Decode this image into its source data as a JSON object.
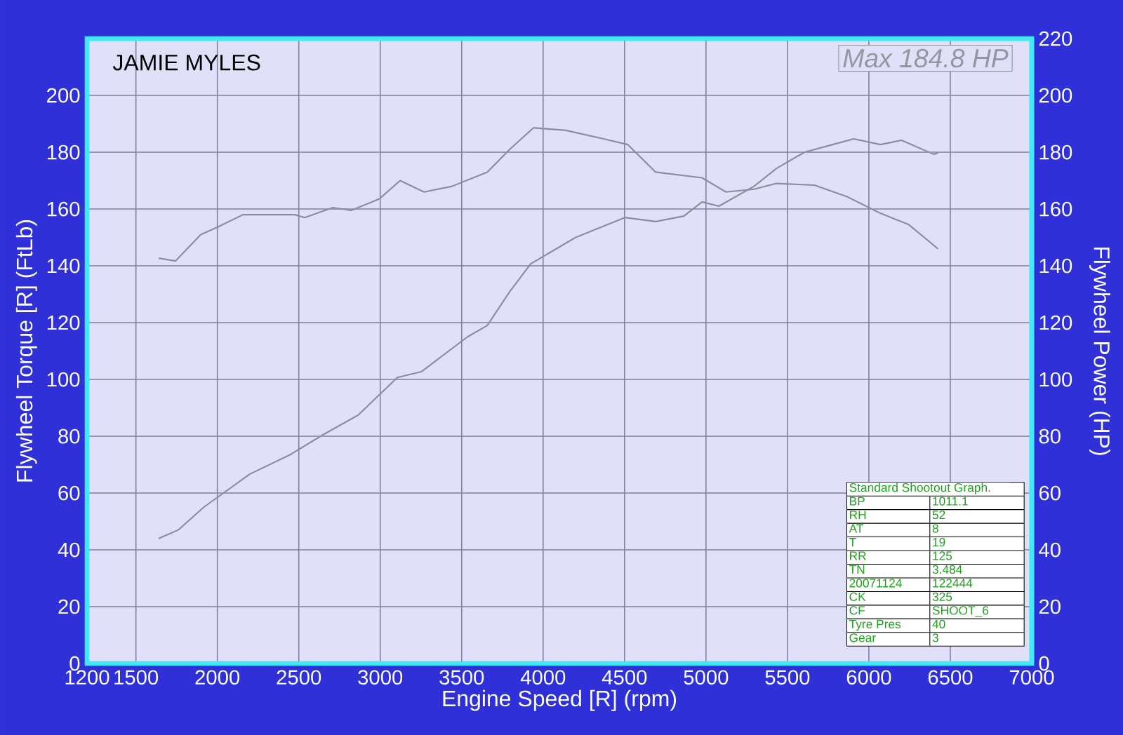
{
  "chart_data": {
    "type": "line",
    "title": "JAMIE MYLES",
    "xlabel": "Engine Speed [R] (rpm)",
    "ylabel": "Flywheel Torque [R] (FtLb)",
    "y2label": "Flywheel Power (HP)",
    "xlim": [
      1200,
      7000
    ],
    "xticks": [
      1200,
      1500,
      2000,
      2500,
      3000,
      3500,
      4000,
      4500,
      5000,
      5500,
      6000,
      6500,
      7000
    ],
    "ylim": [
      0,
      220
    ],
    "yticks": [
      0,
      20,
      40,
      60,
      80,
      100,
      120,
      140,
      160,
      180,
      200
    ],
    "y2lim": [
      0,
      220
    ],
    "y2ticks": [
      0,
      20,
      40,
      60,
      80,
      100,
      120,
      140,
      160,
      180,
      200,
      220
    ],
    "grid": true,
    "series": [
      {
        "color": "#8c8c9c",
        "x": [
          1640,
          1743,
          1898,
          2000,
          2157,
          2476,
          2536,
          2709,
          2821,
          2993,
          3122,
          3269,
          3441,
          3657,
          3795,
          3941,
          4140,
          4372,
          4519,
          4691,
          4976,
          5122,
          5295,
          5433,
          5666,
          5864,
          6071,
          6243,
          6424
        ],
        "values": [
          142.7,
          141.7,
          151,
          153.6,
          158,
          158,
          157,
          160.5,
          159.5,
          163.5,
          170,
          166,
          168,
          173,
          181,
          188.6,
          187.7,
          184.7,
          182.7,
          173,
          171,
          166,
          167,
          169,
          168.4,
          164.4,
          158.5,
          154.6,
          146
        ]
      },
      {
        "color": "#8c8c9c",
        "axis": "y2",
        "x": [
          1640,
          1760,
          1916,
          2200,
          2450,
          2648,
          2864,
          3105,
          3252,
          3536,
          3657,
          3795,
          3924,
          4200,
          4502,
          4691,
          4864,
          4976,
          5079,
          5295,
          5433,
          5605,
          5778,
          5907,
          6071,
          6200,
          6398,
          6424
        ],
        "values": [
          44,
          47,
          55,
          66.7,
          73.6,
          80.5,
          87.4,
          100.7,
          102.7,
          115,
          119,
          130.9,
          140.7,
          150,
          157,
          155.6,
          157.5,
          162.5,
          161,
          168,
          174.3,
          180,
          182.7,
          184.7,
          182.7,
          184.2,
          179.3,
          179.7
        ]
      }
    ],
    "annotations": [
      "Max 184.8 HP",
      "Standard Shootout Graph.",
      "BP",
      "1011.1",
      "RH",
      "52",
      "AT",
      "8",
      "T",
      "19",
      "RR",
      "125",
      "TN",
      "3.484",
      "20071124",
      "122444",
      "CK",
      "325",
      "CF",
      "SHOOT_6",
      "Tyre Pres",
      "40",
      "Gear",
      "3"
    ]
  }
}
